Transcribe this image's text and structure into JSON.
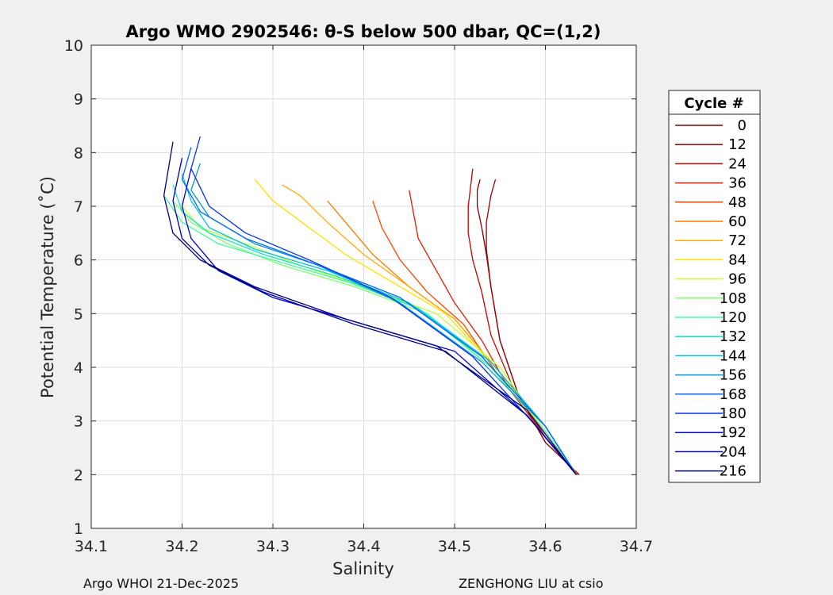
{
  "chart_data": {
    "type": "line",
    "title": "Argo WMO 2902546: θ-S below 500 dbar,  QC=(1,2)",
    "xlabel": "Salinity",
    "ylabel": "Potential Temperature (˚C)",
    "xlim": [
      34.1,
      34.7
    ],
    "ylim": [
      1,
      10
    ],
    "xticks": [
      "34.1",
      "34.2",
      "34.3",
      "34.4",
      "34.5",
      "34.6",
      "34.7"
    ],
    "yticks": [
      "1",
      "2",
      "3",
      "4",
      "5",
      "6",
      "7",
      "8",
      "9",
      "10"
    ],
    "grid": true,
    "legend": {
      "title": "Cycle #",
      "placement": "right",
      "entries": [
        "0",
        "12",
        "24",
        "36",
        "48",
        "60",
        "72",
        "84",
        "96",
        "108",
        "120",
        "132",
        "144",
        "156",
        "168",
        "180",
        "192",
        "204",
        "216"
      ]
    },
    "colors": [
      "#7f0000",
      "#9b0000",
      "#c30000",
      "#e41a00",
      "#ff4500",
      "#ff7a00",
      "#ffaa00",
      "#ffe000",
      "#c8ff30",
      "#80ff70",
      "#3dff9e",
      "#10e4c8",
      "#00c0e8",
      "#0098d8",
      "#0066ff",
      "#0033ee",
      "#0000d2",
      "#00009e",
      "#00007a"
    ],
    "series": [
      {
        "name": "0",
        "x": [
          34.637,
          34.6,
          34.57,
          34.55,
          34.54,
          34.535,
          34.53,
          34.525,
          34.525,
          34.528
        ],
        "y": [
          2.0,
          2.6,
          3.5,
          4.5,
          5.5,
          6.1,
          6.6,
          7.0,
          7.3,
          7.5
        ]
      },
      {
        "name": "12",
        "x": [
          34.637,
          34.6,
          34.57,
          34.55,
          34.54,
          34.535,
          34.535,
          34.54,
          34.545
        ],
        "y": [
          2.0,
          2.6,
          3.5,
          4.5,
          5.5,
          6.2,
          6.7,
          7.2,
          7.5
        ]
      },
      {
        "name": "24",
        "x": [
          34.636,
          34.6,
          34.565,
          34.54,
          34.53,
          34.52,
          34.515,
          34.515,
          34.52
        ],
        "y": [
          2.0,
          2.7,
          3.6,
          4.6,
          5.4,
          6.0,
          6.5,
          7.0,
          7.7
        ]
      },
      {
        "name": "36",
        "x": [
          34.635,
          34.6,
          34.56,
          34.53,
          34.5,
          34.48,
          34.46,
          34.45
        ],
        "y": [
          2.0,
          2.7,
          3.6,
          4.5,
          5.2,
          5.8,
          6.4,
          7.3
        ]
      },
      {
        "name": "48",
        "x": [
          34.635,
          34.6,
          34.55,
          34.51,
          34.47,
          34.44,
          34.42,
          34.41
        ],
        "y": [
          2.0,
          2.8,
          3.8,
          4.8,
          5.4,
          6.0,
          6.6,
          7.1
        ]
      },
      {
        "name": "60",
        "x": [
          34.635,
          34.6,
          34.55,
          34.5,
          34.45,
          34.41,
          34.38,
          34.36
        ],
        "y": [
          2.0,
          2.8,
          3.9,
          4.9,
          5.5,
          6.1,
          6.7,
          7.1
        ]
      },
      {
        "name": "72",
        "x": [
          34.634,
          34.6,
          34.55,
          34.5,
          34.45,
          34.4,
          34.36,
          34.33,
          34.31
        ],
        "y": [
          2.0,
          2.8,
          3.9,
          4.9,
          5.5,
          6.1,
          6.7,
          7.2,
          7.4
        ]
      },
      {
        "name": "84",
        "x": [
          34.634,
          34.6,
          34.55,
          34.49,
          34.43,
          34.38,
          34.34,
          34.3,
          34.28
        ],
        "y": [
          2.0,
          2.8,
          3.9,
          5.0,
          5.6,
          6.1,
          6.6,
          7.1,
          7.5
        ]
      },
      {
        "name": "96",
        "x": [
          34.634,
          34.6,
          34.55,
          34.48,
          34.4,
          34.33,
          34.27,
          34.22,
          34.2
        ],
        "y": [
          2.0,
          2.8,
          4.0,
          5.0,
          5.5,
          5.9,
          6.3,
          6.6,
          7.0
        ]
      },
      {
        "name": "108",
        "x": [
          34.634,
          34.6,
          34.54,
          34.47,
          34.39,
          34.31,
          34.25,
          34.21,
          34.19
        ],
        "y": [
          2.0,
          2.8,
          4.0,
          5.0,
          5.5,
          5.9,
          6.3,
          6.7,
          7.1
        ]
      },
      {
        "name": "120",
        "x": [
          34.634,
          34.6,
          34.54,
          34.46,
          34.38,
          34.3,
          34.24,
          34.2,
          34.18
        ],
        "y": [
          2.0,
          2.8,
          4.0,
          5.1,
          5.6,
          6.0,
          6.3,
          6.7,
          7.2
        ]
      },
      {
        "name": "132",
        "x": [
          34.634,
          34.6,
          34.54,
          34.46,
          34.37,
          34.29,
          34.23,
          34.2,
          34.19
        ],
        "y": [
          2.0,
          2.9,
          4.1,
          5.1,
          5.7,
          6.1,
          6.5,
          6.9,
          7.4
        ]
      },
      {
        "name": "144",
        "x": [
          34.634,
          34.6,
          34.54,
          34.45,
          34.36,
          34.28,
          34.23,
          34.21,
          34.2
        ],
        "y": [
          2.0,
          2.9,
          4.1,
          5.2,
          5.8,
          6.2,
          6.6,
          7.1,
          7.6
        ]
      },
      {
        "name": "156",
        "x": [
          34.634,
          34.6,
          34.53,
          34.44,
          34.35,
          34.28,
          34.23,
          34.21,
          34.22
        ],
        "y": [
          2.0,
          2.9,
          4.1,
          5.2,
          5.9,
          6.3,
          6.8,
          7.3,
          7.8
        ]
      },
      {
        "name": "168",
        "x": [
          34.634,
          34.6,
          34.53,
          34.44,
          34.35,
          34.27,
          34.22,
          34.2,
          34.21
        ],
        "y": [
          2.0,
          2.9,
          4.2,
          5.3,
          5.9,
          6.4,
          6.9,
          7.5,
          8.1
        ]
      },
      {
        "name": "180",
        "x": [
          34.634,
          34.59,
          34.52,
          34.43,
          34.34,
          34.27,
          34.23,
          34.21,
          34.22
        ],
        "y": [
          2.0,
          2.9,
          4.2,
          5.3,
          6.0,
          6.5,
          7.0,
          7.7,
          8.3
        ]
      },
      {
        "name": "192",
        "x": [
          34.634,
          34.58,
          34.5,
          34.4,
          34.3,
          34.24,
          34.21,
          34.2,
          34.21
        ],
        "y": [
          2.0,
          3.1,
          4.3,
          4.8,
          5.3,
          5.8,
          6.4,
          7.0,
          7.7
        ]
      },
      {
        "name": "204",
        "x": [
          34.634,
          34.58,
          34.49,
          34.39,
          34.29,
          34.23,
          34.2,
          34.19,
          34.2
        ],
        "y": [
          2.0,
          3.1,
          4.3,
          4.8,
          5.4,
          5.9,
          6.4,
          7.1,
          7.9
        ]
      },
      {
        "name": "216",
        "x": [
          34.634,
          34.58,
          34.48,
          34.38,
          34.28,
          34.22,
          34.19,
          34.18,
          34.19
        ],
        "y": [
          2.0,
          3.2,
          4.4,
          4.9,
          5.5,
          6.0,
          6.5,
          7.2,
          8.2
        ]
      }
    ]
  },
  "footer": {
    "left": "Argo WHOI 21-Dec-2025",
    "right": "ZENGHONG LIU at csio"
  }
}
